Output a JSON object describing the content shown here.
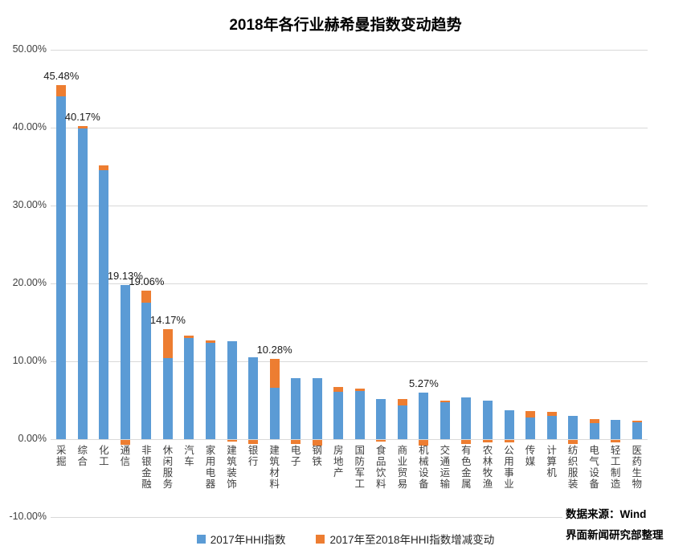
{
  "title": "2018年各行业赫希曼指数变动趋势",
  "legend": [
    "2017年HHI指数",
    "2017年至2018年HHI指数增减变动"
  ],
  "source": {
    "line1": "数据来源：Wind",
    "line2": "界面新闻研究部整理"
  },
  "colors": {
    "series_2017": "#5B9BD5",
    "series_change": "#ED7D31",
    "gridline": "#D9D9D9",
    "axis_text": "#404040"
  },
  "chart_data": {
    "type": "bar",
    "stacked": true,
    "grid": true,
    "legend_position": "bottom",
    "title": "2018年各行业赫希曼指数变动趋势",
    "xlabel": "",
    "ylabel": "",
    "ylim": [
      -10,
      50
    ],
    "y_ticks": [
      "50.00%",
      "40.00%",
      "30.00%",
      "20.00%",
      "10.00%",
      "0.00%",
      "-10.00%"
    ],
    "y_tick_values": [
      50,
      40,
      30,
      20,
      10,
      0,
      -10
    ],
    "categories": [
      "采掘",
      "综合",
      "化工",
      "通信",
      "非银金融",
      "休闲服务",
      "汽车",
      "家用电器",
      "建筑装饰",
      "银行",
      "建筑材料",
      "电子",
      "钢铁",
      "房地产",
      "国防军工",
      "食品饮料",
      "商业贸易",
      "机械设备",
      "交通运输",
      "有色金属",
      "农林牧渔",
      "公用事业",
      "传媒",
      "计算机",
      "纺织服装",
      "电气设备",
      "轻工制造",
      "医药生物"
    ],
    "series": [
      {
        "name": "2017年HHI指数",
        "color": "#5B9BD5",
        "values": [
          44.0,
          39.9,
          34.5,
          19.8,
          17.5,
          10.41,
          13.0,
          12.4,
          12.55,
          10.5,
          6.6,
          7.85,
          7.8,
          6.05,
          6.2,
          5.2,
          4.35,
          6.0,
          4.75,
          5.4,
          4.95,
          3.7,
          2.8,
          2.95,
          3.0,
          2.1,
          2.5,
          2.15
        ]
      },
      {
        "name": "2017年至2018年HHI指数增减变动",
        "color": "#ED7D31",
        "values": [
          1.48,
          0.27,
          0.62,
          -0.67,
          1.56,
          3.76,
          0.3,
          0.25,
          -0.2,
          -0.47,
          3.68,
          -0.53,
          -0.7,
          0.6,
          0.25,
          -0.25,
          0.85,
          -0.73,
          0.25,
          -0.5,
          -0.27,
          -0.27,
          0.85,
          0.55,
          -0.5,
          0.5,
          -0.33,
          0.2
        ]
      }
    ],
    "data_labels": {
      "0": "45.48%",
      "1": "40.17%",
      "3": "19.13%",
      "4": "19.06%",
      "5": "14.17%",
      "10": "10.28%",
      "17": "5.27%"
    }
  }
}
